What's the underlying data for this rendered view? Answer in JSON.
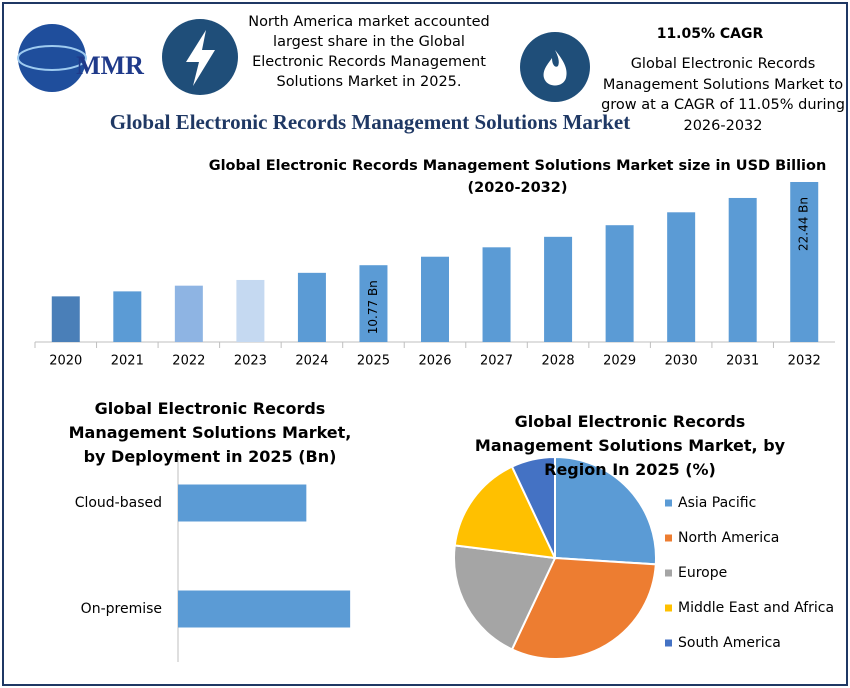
{
  "header": {
    "logo": "MMR",
    "highlight": "North America market accounted largest share in the Global Electronic Records Management Solutions Market in 2025.",
    "cagr_title": "11.05% CAGR",
    "cagr_text": "Global Electronic Records Management Solutions Market to grow at a CAGR of 11.05% during 2026-2032",
    "title": "Global Electronic Records Management Solutions Market"
  },
  "chart_data": [
    {
      "type": "bar",
      "title": "Global Electronic Records Management Solutions Market size in USD Billion (2020-2032)",
      "categories": [
        "2020",
        "2021",
        "2022",
        "2023",
        "2024",
        "2025",
        "2026",
        "2027",
        "2028",
        "2029",
        "2030",
        "2031",
        "2032"
      ],
      "values": [
        6.4,
        7.1,
        7.9,
        8.7,
        9.7,
        10.77,
        11.96,
        13.28,
        14.75,
        16.38,
        18.19,
        20.2,
        22.44
      ],
      "value_labels": [
        null,
        null,
        null,
        null,
        null,
        "10.77 Bn",
        null,
        null,
        null,
        null,
        null,
        null,
        "22.44 Bn"
      ],
      "colors": [
        "#4a7fb8",
        "#5b9bd5",
        "#8eb4e3",
        "#c5d9f1",
        "#5b9bd5",
        "#5b9bd5",
        "#5b9bd5",
        "#5b9bd5",
        "#5b9bd5",
        "#5b9bd5",
        "#5b9bd5",
        "#5b9bd5",
        "#5b9bd5"
      ],
      "ylim": [
        0,
        23
      ]
    },
    {
      "type": "hbar",
      "title": "Global Electronic Records Management Solutions Market, by Deployment  in 2025 (Bn)",
      "categories": [
        "Cloud-based",
        "On-premise"
      ],
      "values": [
        4.6,
        6.17
      ],
      "color": "#5b9bd5",
      "xlim": [
        0,
        10
      ]
    },
    {
      "type": "pie",
      "title": "Global Electronic Records Management Solutions Market, by Region In 2025 (%)",
      "categories": [
        "Asia Pacific",
        "North America",
        "Europe",
        "Middle East and Africa",
        "South America"
      ],
      "values": [
        26,
        31,
        20,
        16,
        7
      ],
      "colors": [
        "#5b9bd5",
        "#ed7d31",
        "#a5a5a5",
        "#ffc000",
        "#4472c4"
      ],
      "legend": "right"
    }
  ]
}
